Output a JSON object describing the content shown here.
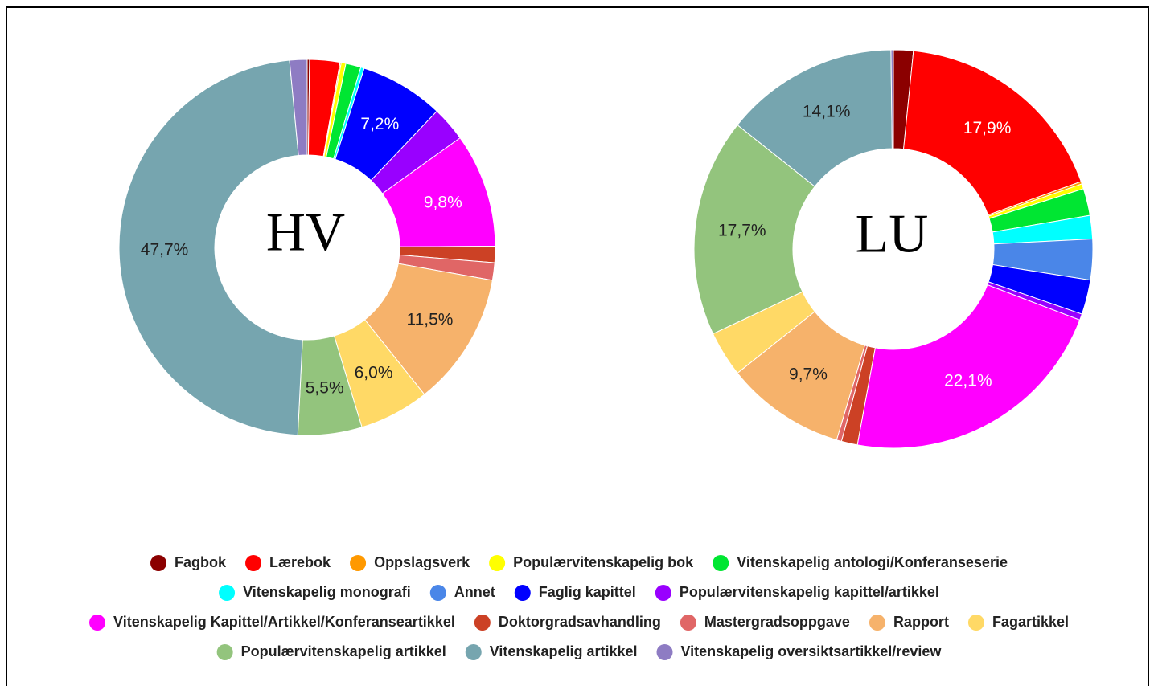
{
  "chart_data": [
    {
      "type": "donut",
      "title": "HV",
      "categories": [
        "Fagbok",
        "Lærebok",
        "Oppslagsverk",
        "Populærvitenskapelig bok",
        "Vitenskapelig antologi/Konferanseserie",
        "Vitenskapelig monografi",
        "Annet",
        "Faglig kapittel",
        "Populærvitenskapelig kapittel/artikkel",
        "Vitenskapelig Kapittel/Artikkel/Konferanseartikkel",
        "Doktorgradsavhandling",
        "Mastergradsoppgave",
        "Rapport",
        "Fagartikkel",
        "Populærvitenskapelig artikkel",
        "Vitenskapelig artikkel",
        "Vitenskapelig oversiktsartikkel/review"
      ],
      "colors": [
        "#8b0000",
        "#ff0000",
        "#ff9900",
        "#ffff00",
        "#00e632",
        "#00ffff",
        "#4a86e8",
        "#0000ff",
        "#9900ff",
        "#ff00ff",
        "#cc4125",
        "#e06666",
        "#f6b26b",
        "#ffd966",
        "#93c47d",
        "#76a5af",
        "#8e7cc3"
      ],
      "values": [
        0.2,
        2.6,
        0.1,
        0.4,
        1.3,
        0.3,
        0,
        7.2,
        3.0,
        9.8,
        1.4,
        1.5,
        11.5,
        6.0,
        5.5,
        47.7,
        1.5
      ],
      "value_labels": [
        null,
        null,
        null,
        null,
        null,
        null,
        null,
        "7,2%",
        null,
        "9,8%",
        null,
        null,
        "11,5%",
        "6,0%",
        "5,5%",
        "47,7%",
        null
      ]
    },
    {
      "type": "donut",
      "title": "LU",
      "categories": [
        "Fagbok",
        "Lærebok",
        "Oppslagsverk",
        "Populærvitenskapelig bok",
        "Vitenskapelig antologi/Konferanseserie",
        "Vitenskapelig monografi",
        "Annet",
        "Faglig kapittel",
        "Populærvitenskapelig kapittel/artikkel",
        "Vitenskapelig Kapittel/Artikkel/Konferanseartikkel",
        "Doktorgradsavhandling",
        "Mastergradsoppgave",
        "Rapport",
        "Fagartikkel",
        "Populærvitenskapelig artikkel",
        "Vitenskapelig artikkel",
        "Vitenskapelig oversiktsartikkel/review"
      ],
      "colors": [
        "#8b0000",
        "#ff0000",
        "#ff9900",
        "#ffff00",
        "#00e632",
        "#00ffff",
        "#4a86e8",
        "#0000ff",
        "#9900ff",
        "#ff00ff",
        "#cc4125",
        "#e06666",
        "#f6b26b",
        "#ffd966",
        "#93c47d",
        "#76a5af",
        "#8e7cc3"
      ],
      "values": [
        1.6,
        17.9,
        0.2,
        0.4,
        2.2,
        1.9,
        3.3,
        2.8,
        0.5,
        22.1,
        1.3,
        0.4,
        9.7,
        3.7,
        17.7,
        14.1,
        0.2
      ],
      "value_labels": [
        null,
        "17,9%",
        null,
        null,
        null,
        null,
        null,
        null,
        null,
        "22,1%",
        null,
        null,
        "9,7%",
        null,
        "17,7%",
        "14,1%",
        null
      ]
    }
  ]
}
